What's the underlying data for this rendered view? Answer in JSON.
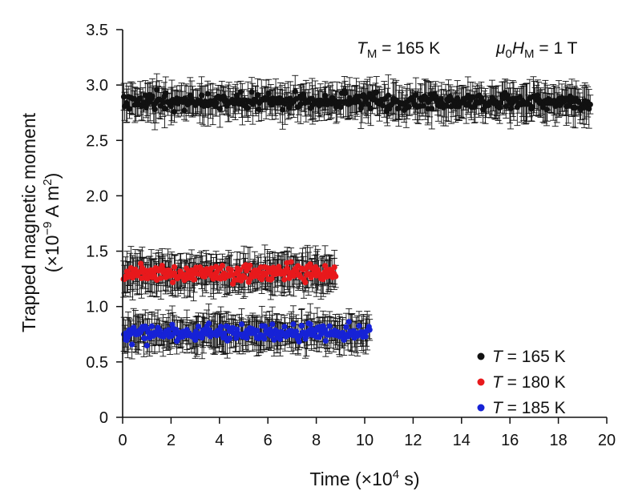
{
  "chart_data": {
    "type": "scatter",
    "title": "",
    "xlabel": {
      "main": "Time (×10",
      "sup": "4",
      "tail": " s)"
    },
    "ylabel": {
      "line1": "Trapped magnetic moment",
      "line2_pre": "(×10",
      "line2_sup1": "−9",
      "line2_mid": " A m",
      "line2_sup2": "2",
      "line2_post": ")"
    },
    "xlim": [
      0,
      20
    ],
    "ylim": [
      0,
      3.5
    ],
    "xticks": [
      "0",
      "2",
      "4",
      "6",
      "8",
      "10",
      "12",
      "14",
      "16",
      "18",
      "20"
    ],
    "yticks": [
      "0",
      "0.5",
      "1.0",
      "1.5",
      "2.0",
      "2.5",
      "3.0",
      "3.5"
    ],
    "annotations": [
      {
        "id": "tm",
        "italic": "T",
        "sub": "M",
        "rest": " = 165 K"
      },
      {
        "id": "hm",
        "italic1": "μ",
        "sub1": "0",
        "italic2": "H",
        "sub2": "M",
        "rest": " = 1 T"
      }
    ],
    "legend_position": "bottom-right",
    "grid": false,
    "series": [
      {
        "name": "T = 165 K",
        "legend_italic": "T",
        "legend_rest": " = 165 K",
        "color": "#111111",
        "x_range": [
          0.05,
          19.3
        ],
        "mean": 2.85,
        "spread": 0.07,
        "err": 0.13,
        "n": 420
      },
      {
        "name": "T = 180 K",
        "legend_italic": "T",
        "legend_rest": " = 180 K",
        "color": "#e8191c",
        "x_range": [
          0.05,
          8.8
        ],
        "mean": 1.3,
        "spread": 0.07,
        "err": 0.14,
        "n": 230
      },
      {
        "name": "T = 185 K",
        "legend_italic": "T",
        "legend_rest": " = 185 K",
        "color": "#1622d6",
        "x_range": [
          0.05,
          10.2
        ],
        "mean": 0.76,
        "spread": 0.07,
        "err": 0.13,
        "n": 260
      }
    ]
  }
}
